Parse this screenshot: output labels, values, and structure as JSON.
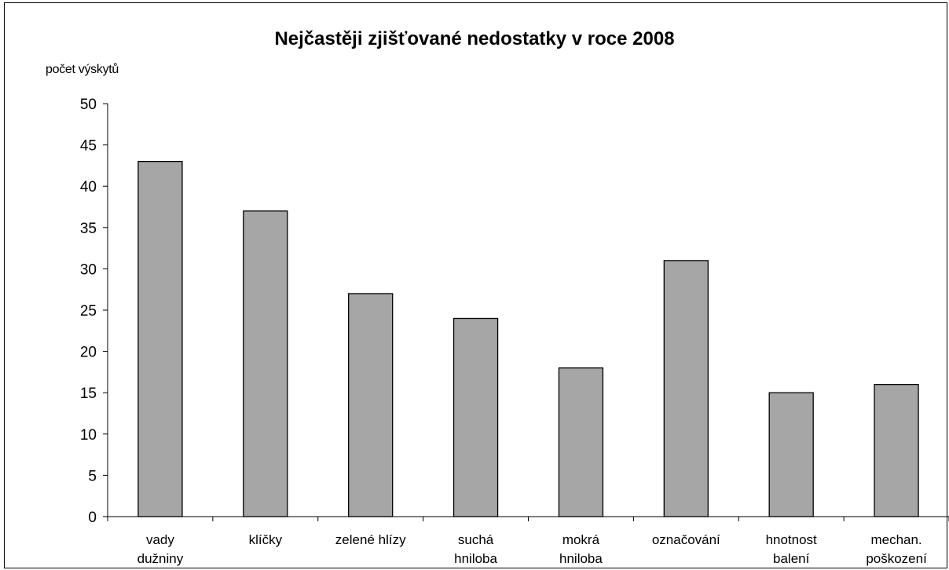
{
  "chart_data": {
    "type": "bar",
    "title": "Nejčastěji zjišťované nedostatky v roce 2008",
    "ylabel": "počet výskytů",
    "xlabel": "",
    "ylim": [
      0,
      50
    ],
    "yticks": [
      "0",
      "5",
      "10",
      "15",
      "20",
      "25",
      "30",
      "35",
      "40",
      "45",
      "50"
    ],
    "grid": false,
    "categories": [
      [
        "vady",
        "dužniny"
      ],
      [
        "klíčky"
      ],
      [
        "zelené hlízy"
      ],
      [
        "suchá",
        "hniloba"
      ],
      [
        "mokrá",
        "hniloba"
      ],
      [
        "označování"
      ],
      [
        "hnotnost",
        "balení"
      ],
      [
        "mechan.",
        "poškození"
      ]
    ],
    "values": [
      43,
      37,
      27,
      24,
      18,
      31,
      15,
      16
    ],
    "colors": {
      "bar": "#a6a6a6",
      "outline": "#000000"
    }
  }
}
